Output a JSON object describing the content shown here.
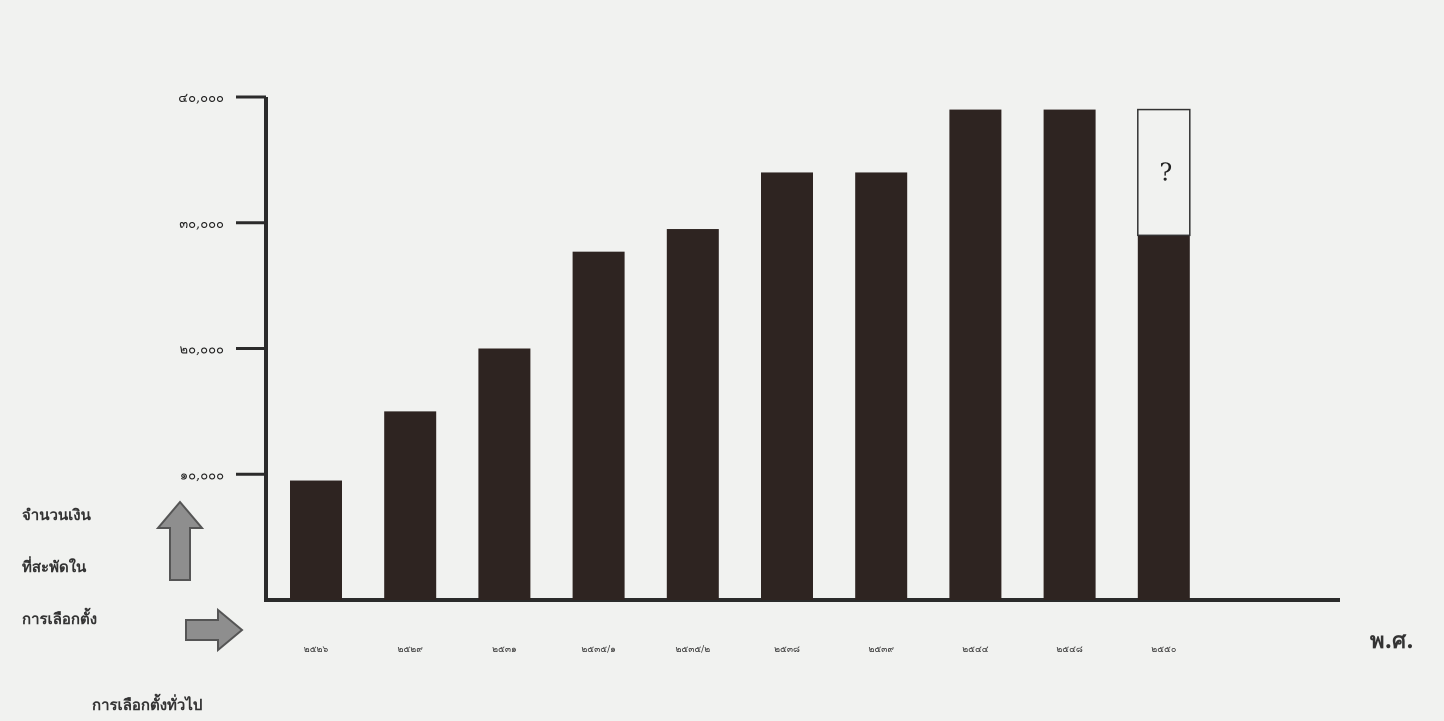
{
  "chart_data": {
    "type": "bar",
    "x_unit_label": "พ.ศ.",
    "y_axis_caption": [
      "จำนวนเงิน",
      "ที่สะพัดใน",
      "การเลือกตั้ง"
    ],
    "x_axis_caption": "การเลือกตั้งทั่วไป",
    "yticks": [
      {
        "value": 10000,
        "label": "๑๐,๐๐๐"
      },
      {
        "value": 20000,
        "label": "๒๐,๐๐๐"
      },
      {
        "value": 30000,
        "label": "๓๐,๐๐๐"
      },
      {
        "value": 40000,
        "label": "๔๐,๐๐๐"
      }
    ],
    "ylim": [
      0,
      40000
    ],
    "categories": [
      "๒๕๒๖",
      "๒๕๒๙",
      "๒๕๓๑",
      "๒๕๓๕/๑",
      "๒๕๓๕/๒",
      "๒๕๓๘",
      "๒๕๓๙",
      "๒๕๔๔",
      "๒๕๔๘",
      "๒๕๕๐"
    ],
    "values": [
      9500,
      15000,
      20000,
      27700,
      29500,
      34000,
      34000,
      39000,
      39000,
      29000
    ],
    "unknown_extension": {
      "category": "๒๕๕๐",
      "top_value": 39000,
      "label": "?"
    },
    "bar_color": "#2e2421",
    "grid": false
  }
}
